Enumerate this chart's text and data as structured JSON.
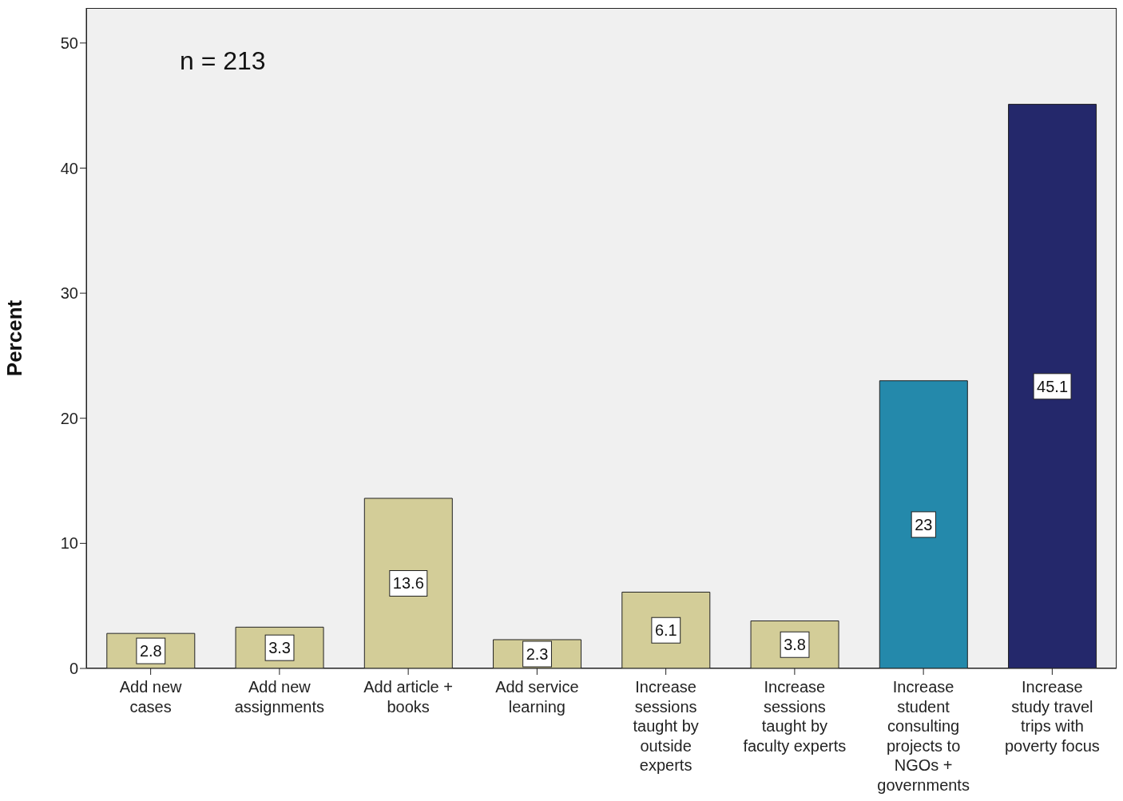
{
  "chart_data": {
    "type": "bar",
    "ylabel": "Percent",
    "categories": [
      "Add new cases",
      "Add new assignments",
      "Add article + books",
      "Add service learning",
      "Increase sessions taught by outside experts",
      "Increase sessions taught by faculty experts",
      "Increase student consulting projects to NGOs + governments",
      "Increase study travel trips with poverty focus"
    ],
    "values": [
      2.8,
      3.3,
      13.6,
      2.3,
      6.1,
      3.8,
      23,
      45.1
    ],
    "colors": [
      "#d3cd98",
      "#d3cd98",
      "#d3cd98",
      "#d3cd98",
      "#d3cd98",
      "#d3cd98",
      "#2489ab",
      "#24286b"
    ],
    "ylim": [
      0,
      52.8
    ],
    "yticks": [
      0,
      10,
      20,
      30,
      40,
      50
    ],
    "data_labels": true,
    "annotations": [
      "n = 213"
    ]
  }
}
